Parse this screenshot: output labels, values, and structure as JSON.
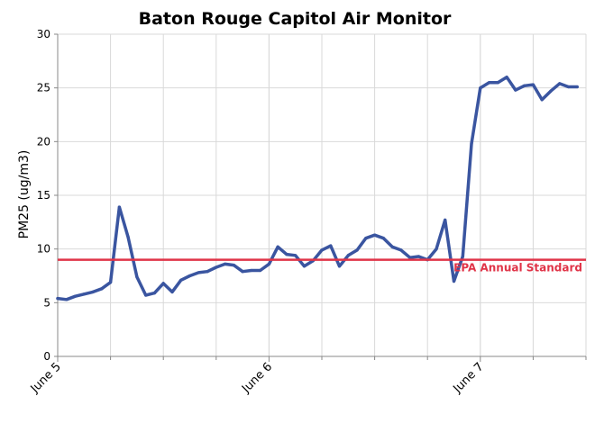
{
  "chart_data": {
    "type": "line",
    "title": "Baton Rouge Capitol Air Monitor",
    "xlabel": "",
    "ylabel": "PM25 (ug/m3)",
    "ylim": [
      0,
      30
    ],
    "yticks": [
      0,
      5,
      10,
      15,
      20,
      25,
      30
    ],
    "xlim": [
      "2023-06-05 00:00",
      "2023-06-07 12:00"
    ],
    "xtick_labels": [
      "June 5",
      "June 6",
      "June 7"
    ],
    "grid": true,
    "colors": {
      "line": "#3a55a0",
      "reference": "#e03448",
      "grid": "#d9d9d9",
      "axis": "#888888"
    },
    "series": [
      {
        "x": [
          "2023-06-05 00:00",
          "2023-06-05 01:00",
          "2023-06-05 02:00",
          "2023-06-05 03:00",
          "2023-06-05 04:00",
          "2023-06-05 05:00",
          "2023-06-05 06:00",
          "2023-06-05 07:00",
          "2023-06-05 08:00",
          "2023-06-05 09:00",
          "2023-06-05 10:00",
          "2023-06-05 11:00",
          "2023-06-05 12:00",
          "2023-06-05 13:00",
          "2023-06-05 14:00",
          "2023-06-05 15:00",
          "2023-06-05 16:00",
          "2023-06-05 17:00",
          "2023-06-05 18:00",
          "2023-06-05 19:00",
          "2023-06-05 20:00",
          "2023-06-05 21:00",
          "2023-06-05 22:00",
          "2023-06-05 23:00",
          "2023-06-06 00:00",
          "2023-06-06 01:00",
          "2023-06-06 02:00",
          "2023-06-06 03:00",
          "2023-06-06 04:00",
          "2023-06-06 05:00",
          "2023-06-06 06:00",
          "2023-06-06 07:00",
          "2023-06-06 08:00",
          "2023-06-06 09:00",
          "2023-06-06 10:00",
          "2023-06-06 11:00",
          "2023-06-06 12:00",
          "2023-06-06 13:00",
          "2023-06-06 14:00",
          "2023-06-06 15:00",
          "2023-06-06 16:00",
          "2023-06-06 17:00",
          "2023-06-06 18:00",
          "2023-06-06 19:00",
          "2023-06-06 20:00",
          "2023-06-06 21:00",
          "2023-06-06 22:00",
          "2023-06-06 23:00",
          "2023-06-07 00:00",
          "2023-06-07 01:00",
          "2023-06-07 02:00",
          "2023-06-07 03:00",
          "2023-06-07 04:00",
          "2023-06-07 05:00",
          "2023-06-07 06:00",
          "2023-06-07 07:00",
          "2023-06-07 08:00",
          "2023-06-07 09:00",
          "2023-06-07 10:00",
          "2023-06-07 11:00"
        ],
        "values": [
          5.4,
          5.3,
          5.6,
          5.8,
          6.0,
          6.3,
          6.9,
          13.9,
          11.1,
          7.4,
          5.7,
          5.9,
          6.8,
          6.0,
          7.1,
          7.5,
          7.8,
          7.9,
          8.3,
          8.6,
          8.5,
          7.9,
          8.0,
          8.0,
          8.6,
          10.2,
          9.5,
          9.4,
          8.4,
          8.9,
          9.9,
          10.3,
          8.4,
          9.4,
          9.9,
          11.0,
          11.3,
          11.0,
          10.2,
          9.9,
          9.2,
          9.3,
          9.0,
          10.0,
          12.7,
          7.0,
          9.3,
          19.8,
          25.0,
          25.5,
          25.5,
          26.0,
          24.8,
          25.2,
          25.3,
          23.9,
          24.7,
          25.4,
          25.1,
          25.1
        ]
      }
    ],
    "reference_line": {
      "value": 9,
      "label": "EPA Annual Standard"
    }
  }
}
